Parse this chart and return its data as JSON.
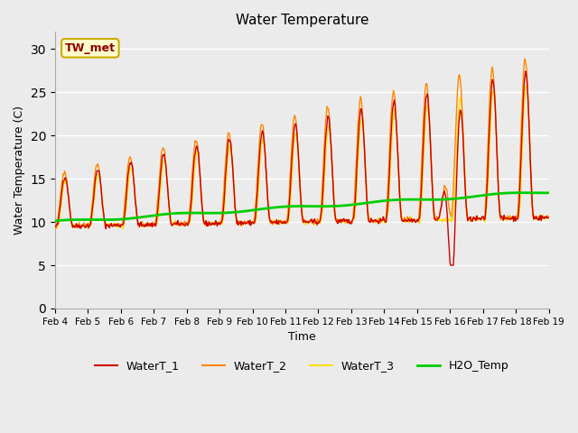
{
  "title": "Water Temperature",
  "xlabel": "Time",
  "ylabel": "Water Temperature (C)",
  "ylim": [
    0,
    32
  ],
  "yticks": [
    0,
    5,
    10,
    15,
    20,
    25,
    30
  ],
  "background_color": "#e8e8e8",
  "plot_bg_color": "#ebebeb",
  "annotation_text": "TW_met",
  "annotation_color": "#8b0000",
  "annotation_bg": "#ffffcc",
  "line_colors": {
    "WaterT_1": "#cc0000",
    "WaterT_2": "#ff8800",
    "WaterT_3": "#ffdd00",
    "H2O_Temp": "#00cc00"
  },
  "line_widths": {
    "WaterT_1": 1.0,
    "WaterT_2": 1.0,
    "WaterT_3": 1.0,
    "H2O_Temp": 2.0
  },
  "xtick_labels": [
    "Feb 4",
    "Feb 5",
    "Feb 6",
    "Feb 7",
    "Feb 8",
    "Feb 9",
    "Feb 10",
    "Feb 11",
    "Feb 12",
    "Feb 13",
    "Feb 14",
    "Feb 15",
    "Feb 16",
    "Feb 17",
    "Feb 18",
    "Feb 19"
  ],
  "num_days": 15,
  "pts_per_day": 48
}
